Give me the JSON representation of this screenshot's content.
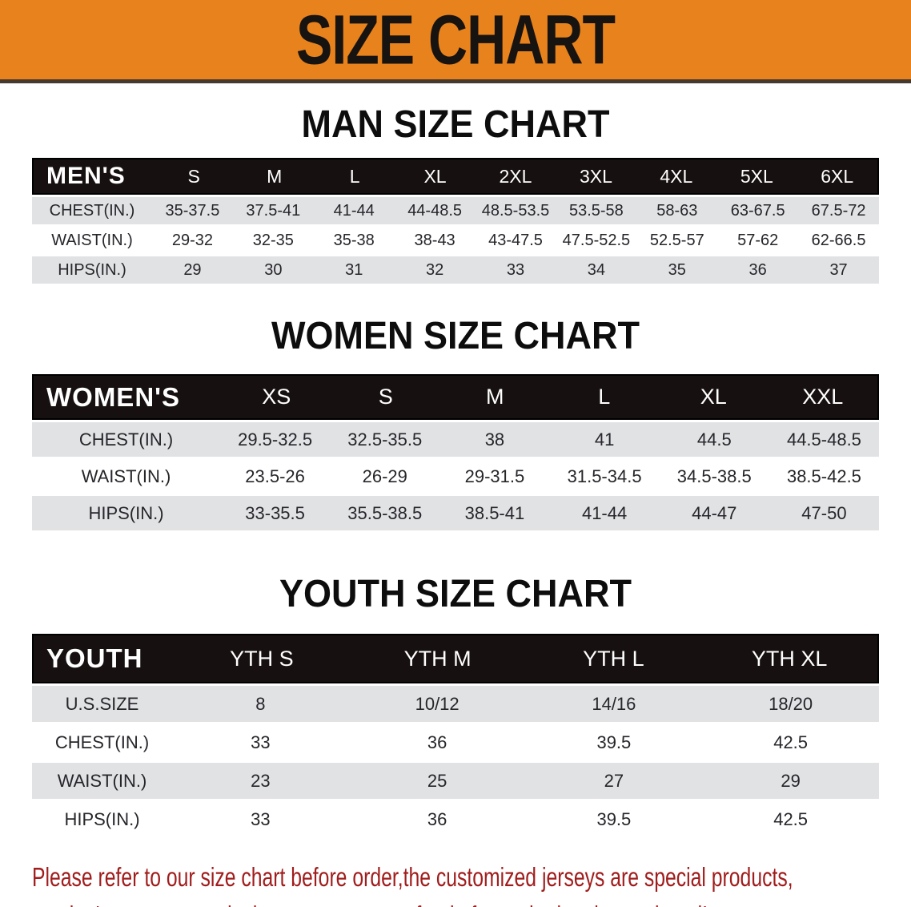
{
  "banner": {
    "title": "SIZE CHART"
  },
  "theme": {
    "banner_bg": "#E8821C",
    "header_bar_bg": "#171010",
    "row_gray": "#E1E2E4",
    "note_red": "#A11D1D"
  },
  "sections": [
    {
      "id": "men",
      "heading": "MAN SIZE CHART",
      "label": "MEN'S",
      "columns": [
        "S",
        "M",
        "L",
        "XL",
        "2XL",
        "3XL",
        "4XL",
        "5XL",
        "6XL"
      ],
      "rows": [
        {
          "label": "CHEST(IN.)",
          "values": [
            "35-37.5",
            "37.5-41",
            "41-44",
            "44-48.5",
            "48.5-53.5",
            "53.5-58",
            "58-63",
            "63-67.5",
            "67.5-72"
          ]
        },
        {
          "label": "WAIST(IN.)",
          "values": [
            "29-32",
            "32-35",
            "35-38",
            "38-43",
            "43-47.5",
            "47.5-52.5",
            "52.5-57",
            "57-62",
            "62-66.5"
          ]
        },
        {
          "label": "HIPS(IN.)",
          "values": [
            "29",
            "30",
            "31",
            "32",
            "33",
            "34",
            "35",
            "36",
            "37"
          ]
        }
      ]
    },
    {
      "id": "women",
      "heading": "WOMEN SIZE CHART",
      "label": "WOMEN'S",
      "columns": [
        "XS",
        "S",
        "M",
        "L",
        "XL",
        "XXL"
      ],
      "rows": [
        {
          "label": "CHEST(IN.)",
          "values": [
            "29.5-32.5",
            "32.5-35.5",
            "38",
            "41",
            "44.5",
            "44.5-48.5"
          ]
        },
        {
          "label": "WAIST(IN.)",
          "values": [
            "23.5-26",
            "26-29",
            "29-31.5",
            "31.5-34.5",
            "34.5-38.5",
            "38.5-42.5"
          ]
        },
        {
          "label": "HIPS(IN.)",
          "values": [
            "33-35.5",
            "35.5-38.5",
            "38.5-41",
            "41-44",
            "44-47",
            "47-50"
          ]
        }
      ]
    },
    {
      "id": "youth",
      "heading": "YOUTH SIZE CHART",
      "label": "YOUTH",
      "columns": [
        "YTH S",
        "YTH M",
        "YTH L",
        "YTH XL"
      ],
      "rows": [
        {
          "label": "U.S.SIZE",
          "values": [
            "8",
            "10/12",
            "14/16",
            "18/20"
          ]
        },
        {
          "label": "CHEST(IN.)",
          "values": [
            "33",
            "36",
            "39.5",
            "42.5"
          ]
        },
        {
          "label": "WAIST(IN.)",
          "values": [
            "23",
            "25",
            "27",
            "29"
          ]
        },
        {
          "label": "HIPS(IN.)",
          "values": [
            "33",
            "36",
            "39.5",
            "42.5"
          ]
        }
      ]
    }
  ],
  "footer": {
    "line1": "Please refer to our size chart before order,the customized jerseys are special products,",
    "line2": "we don't accept cancel, change, teturn or refund after order has been placed!"
  }
}
